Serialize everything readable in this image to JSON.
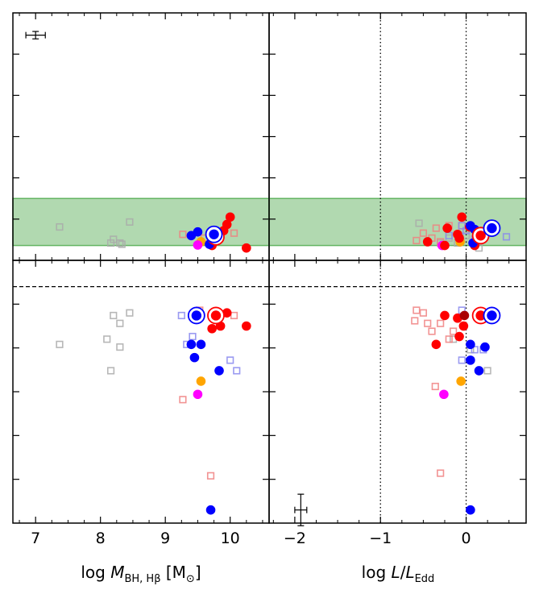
{
  "chart_data": [
    {
      "panel": "top-left",
      "type": "scatter",
      "title": "",
      "xlabel": "log M_BH,Hβ [M⊙]",
      "ylabel": "",
      "xlim": [
        6.65,
        10.6
      ],
      "ylim": [
        0,
        1
      ],
      "grid": false,
      "band": {
        "y0": 0.06,
        "y1": 0.25,
        "color": "#63b462"
      },
      "error_bar": {
        "x": 7.0,
        "y": 0.91,
        "xerr": 0.15,
        "yerr": 0.015
      },
      "series": [
        {
          "name": "grey-squares",
          "marker": "open-square",
          "color": "#aaaaaa",
          "points": [
            [
              7.37,
              0.135
            ],
            [
              8.16,
              0.07
            ],
            [
              8.2,
              0.085
            ],
            [
              8.3,
              0.07
            ],
            [
              8.33,
              0.065
            ],
            [
              8.45,
              0.155
            ]
          ]
        },
        {
          "name": "light-red-squares",
          "marker": "open-square",
          "color": "#f08080",
          "points": [
            [
              9.27,
              0.105
            ],
            [
              9.83,
              0.1
            ],
            [
              10.06,
              0.11
            ],
            [
              9.6,
              0.09
            ]
          ]
        },
        {
          "name": "red-circles",
          "marker": "filled-circle",
          "color": "#ff0000",
          "points": [
            [
              9.75,
              0.095
            ],
            [
              9.8,
              0.085
            ],
            [
              9.95,
              0.145
            ],
            [
              10.0,
              0.175
            ],
            [
              9.9,
              0.12
            ],
            [
              10.25,
              0.05
            ],
            [
              9.72,
              0.06
            ]
          ]
        },
        {
          "name": "blue-circles",
          "marker": "filled-circle",
          "color": "#0000ff",
          "points": [
            [
              9.5,
              0.115
            ],
            [
              9.4,
              0.1
            ],
            [
              9.68,
              0.065
            ]
          ]
        },
        {
          "name": "orange-circles",
          "marker": "filled-circle",
          "color": "#ffa500",
          "points": [
            [
              9.55,
              0.075
            ]
          ]
        },
        {
          "name": "magenta-circles",
          "marker": "filled-circle",
          "color": "#ff00ff",
          "points": [
            [
              9.5,
              0.062
            ]
          ]
        },
        {
          "name": "red-ringed",
          "marker": "ringed-circle",
          "color": "#ff0000",
          "points": [
            [
              9.78,
              0.095
            ]
          ]
        },
        {
          "name": "blue-ringed",
          "marker": "ringed-circle",
          "color": "#0000ff",
          "points": [
            [
              9.75,
              0.105
            ]
          ]
        }
      ]
    },
    {
      "panel": "top-right",
      "type": "scatter",
      "xlabel": "log L/L_Edd",
      "xlim": [
        -2.3,
        0.7
      ],
      "ylim": [
        0,
        1
      ],
      "grid": false,
      "band": {
        "y0": 0.06,
        "y1": 0.25,
        "color": "#63b462"
      },
      "vlines": [
        -1,
        0
      ],
      "series": [
        {
          "name": "grey-squares",
          "marker": "open-square",
          "color": "#aaaaaa",
          "points": [
            [
              -0.55,
              0.15
            ],
            [
              -0.3,
              0.07
            ],
            [
              -0.2,
              0.09
            ],
            [
              -0.1,
              0.07
            ],
            [
              0.0,
              0.1
            ],
            [
              0.15,
              0.05
            ]
          ]
        },
        {
          "name": "light-red-squares",
          "marker": "open-square",
          "color": "#f08080",
          "points": [
            [
              -0.58,
              0.08
            ],
            [
              -0.4,
              0.09
            ],
            [
              -0.35,
              0.13
            ],
            [
              -0.3,
              0.075
            ],
            [
              -0.2,
              0.14
            ],
            [
              -0.05,
              0.14
            ],
            [
              0.15,
              0.09
            ],
            [
              -0.5,
              0.11
            ]
          ]
        },
        {
          "name": "light-blue-squares",
          "marker": "open-square",
          "color": "#8888ee",
          "points": [
            [
              -0.2,
              0.1
            ],
            [
              -0.05,
              0.14
            ],
            [
              0.0,
              0.12
            ],
            [
              0.1,
              0.085
            ],
            [
              0.2,
              0.12
            ],
            [
              0.47,
              0.095
            ]
          ]
        },
        {
          "name": "red-circles",
          "marker": "filled-circle",
          "color": "#ff0000",
          "points": [
            [
              -0.45,
              0.075
            ],
            [
              -0.25,
              0.06
            ],
            [
              -0.22,
              0.13
            ],
            [
              -0.08,
              0.09
            ],
            [
              -0.05,
              0.175
            ],
            [
              -0.1,
              0.105
            ],
            [
              0.04,
              0.135
            ],
            [
              0.1,
              0.06
            ]
          ]
        },
        {
          "name": "blue-circles",
          "marker": "filled-circle",
          "color": "#0000ff",
          "points": [
            [
              0.05,
              0.14
            ],
            [
              0.1,
              0.125
            ],
            [
              0.08,
              0.07
            ]
          ]
        },
        {
          "name": "orange-circles",
          "marker": "filled-circle",
          "color": "#ffa500",
          "points": [
            [
              -0.07,
              0.075
            ]
          ]
        },
        {
          "name": "magenta-circles",
          "marker": "filled-circle",
          "color": "#ff00ff",
          "points": [
            [
              -0.28,
              0.06
            ]
          ]
        },
        {
          "name": "red-ringed",
          "marker": "ringed-circle",
          "color": "#ff0000",
          "points": [
            [
              0.17,
              0.1
            ]
          ]
        },
        {
          "name": "blue-ringed",
          "marker": "ringed-circle",
          "color": "#0000ff",
          "points": [
            [
              0.3,
              0.13
            ]
          ]
        }
      ]
    },
    {
      "panel": "bottom-left",
      "type": "scatter",
      "xlabel": "log M_BH,Hβ [M⊙]",
      "xlim": [
        6.65,
        10.6
      ],
      "ylim": [
        0,
        1
      ],
      "grid": false,
      "hline": 0.9,
      "series": [
        {
          "name": "grey-squares",
          "marker": "open-square",
          "color": "#aaaaaa",
          "points": [
            [
              7.37,
              0.68
            ],
            [
              8.1,
              0.7
            ],
            [
              8.16,
              0.58
            ],
            [
              8.2,
              0.79
            ],
            [
              8.3,
              0.76
            ],
            [
              8.3,
              0.67
            ],
            [
              8.45,
              0.8
            ]
          ]
        },
        {
          "name": "light-red-squares",
          "marker": "open-square",
          "color": "#f08080",
          "points": [
            [
              9.27,
              0.47
            ],
            [
              9.53,
              0.81
            ],
            [
              9.7,
              0.18
            ],
            [
              10.06,
              0.79
            ]
          ]
        },
        {
          "name": "light-blue-squares",
          "marker": "open-square",
          "color": "#8888ee",
          "points": [
            [
              9.25,
              0.79
            ],
            [
              9.33,
              0.68
            ],
            [
              9.42,
              0.71
            ],
            [
              10.0,
              0.62
            ],
            [
              10.1,
              0.58
            ]
          ]
        },
        {
          "name": "red-circles",
          "marker": "filled-circle",
          "color": "#ff0000",
          "points": [
            [
              9.95,
              0.8
            ],
            [
              9.72,
              0.74
            ],
            [
              9.85,
              0.75
            ],
            [
              10.25,
              0.75
            ]
          ]
        },
        {
          "name": "blue-circles",
          "marker": "filled-circle",
          "color": "#0000ff",
          "points": [
            [
              9.4,
              0.68
            ],
            [
              9.45,
              0.63
            ],
            [
              9.55,
              0.68
            ],
            [
              9.83,
              0.58
            ],
            [
              9.7,
              0.05
            ]
          ]
        },
        {
          "name": "orange-circles",
          "marker": "filled-circle",
          "color": "#ffa500",
          "points": [
            [
              9.55,
              0.54
            ]
          ]
        },
        {
          "name": "magenta-circles",
          "marker": "filled-circle",
          "color": "#ff00ff",
          "points": [
            [
              9.5,
              0.49
            ]
          ]
        },
        {
          "name": "red-ringed",
          "marker": "ringed-circle",
          "color": "#ff0000",
          "points": [
            [
              9.78,
              0.79
            ]
          ]
        },
        {
          "name": "blue-ringed",
          "marker": "ringed-circle",
          "color": "#0000ff",
          "points": [
            [
              9.48,
              0.79
            ]
          ]
        }
      ]
    },
    {
      "panel": "bottom-right",
      "type": "scatter",
      "xlabel": "log L/L_Edd",
      "xlim": [
        -2.3,
        0.7
      ],
      "ylim": [
        0,
        1
      ],
      "grid": false,
      "hline": 0.9,
      "vlines": [
        -1,
        0
      ],
      "error_bar": {
        "x": -1.93,
        "y": 0.05,
        "xerr": 0.07,
        "yerr": 0.06
      },
      "series": [
        {
          "name": "grey-squares",
          "marker": "open-square",
          "color": "#aaaaaa",
          "points": [
            [
              -0.15,
              0.7
            ],
            [
              0.05,
              0.66
            ],
            [
              0.25,
              0.58
            ]
          ]
        },
        {
          "name": "light-red-squares",
          "marker": "open-square",
          "color": "#f08080",
          "points": [
            [
              -0.58,
              0.81
            ],
            [
              -0.6,
              0.77
            ],
            [
              -0.5,
              0.8
            ],
            [
              -0.45,
              0.76
            ],
            [
              -0.4,
              0.73
            ],
            [
              -0.36,
              0.52
            ],
            [
              -0.3,
              0.76
            ],
            [
              -0.3,
              0.19
            ],
            [
              -0.2,
              0.7
            ],
            [
              -0.15,
              0.73
            ]
          ]
        },
        {
          "name": "light-blue-squares",
          "marker": "open-square",
          "color": "#8888ee",
          "points": [
            [
              -0.05,
              0.81
            ],
            [
              -0.05,
              0.62
            ],
            [
              0.1,
              0.66
            ],
            [
              0.2,
              0.66
            ]
          ]
        },
        {
          "name": "red-circles",
          "marker": "filled-circle",
          "color": "#ff0000",
          "points": [
            [
              -0.35,
              0.68
            ],
            [
              -0.1,
              0.78
            ],
            [
              -0.25,
              0.79
            ],
            [
              -0.08,
              0.71
            ],
            [
              -0.03,
              0.75
            ]
          ]
        },
        {
          "name": "blue-circles",
          "marker": "filled-circle",
          "color": "#0000ff",
          "points": [
            [
              0.05,
              0.68
            ],
            [
              0.05,
              0.62
            ],
            [
              0.15,
              0.58
            ],
            [
              0.22,
              0.67
            ],
            [
              0.05,
              0.05
            ]
          ]
        },
        {
          "name": "dark-red-circles",
          "marker": "filled-circle",
          "color": "#aa0000",
          "points": [
            [
              -0.02,
              0.79
            ]
          ]
        },
        {
          "name": "orange-circles",
          "marker": "filled-circle",
          "color": "#ffa500",
          "points": [
            [
              -0.06,
              0.54
            ]
          ]
        },
        {
          "name": "magenta-circles",
          "marker": "filled-circle",
          "color": "#ff00ff",
          "points": [
            [
              -0.26,
              0.49
            ]
          ]
        },
        {
          "name": "red-ringed",
          "marker": "ringed-circle",
          "color": "#ff0000",
          "points": [
            [
              0.17,
              0.79
            ]
          ]
        },
        {
          "name": "blue-ringed",
          "marker": "ringed-circle",
          "color": "#0000ff",
          "points": [
            [
              0.3,
              0.79
            ]
          ]
        }
      ]
    }
  ],
  "axes": {
    "left_xticks": [
      {
        "value": 7,
        "label": "7"
      },
      {
        "value": 8,
        "label": "8"
      },
      {
        "value": 9,
        "label": "9"
      },
      {
        "value": 10,
        "label": "10"
      }
    ],
    "right_xticks": [
      {
        "value": -2,
        "label": "−2"
      },
      {
        "value": -1,
        "label": "−1"
      },
      {
        "value": 0,
        "label": "0"
      }
    ],
    "left_xlabel": {
      "prefix": "log ",
      "var": "M",
      "sub": "BH, Hβ",
      "suffix": " [M",
      "sunsub": "⊙",
      "close": "]"
    },
    "right_xlabel": {
      "prefix": "log ",
      "var": "L",
      "slash": "/",
      "var2": "L",
      "sub": "Edd"
    }
  }
}
